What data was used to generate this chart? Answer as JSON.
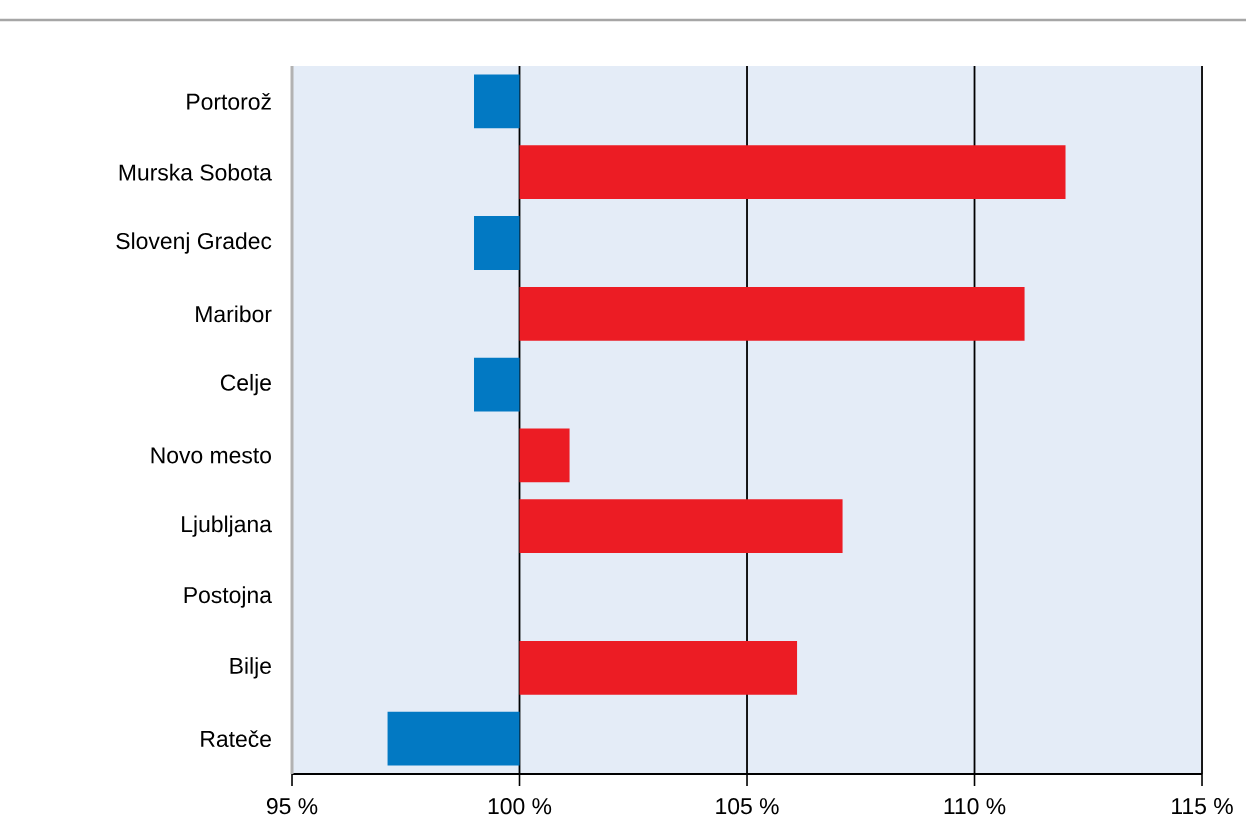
{
  "chart_data": {
    "type": "bar",
    "orientation": "horizontal",
    "categories": [
      "Portorož",
      "Murska Sobota",
      "Slovenj Gradec",
      "Maribor",
      "Celje",
      "Novo mesto",
      "Ljubljana",
      "Postojna",
      "Bilje",
      "Rateče"
    ],
    "base": [
      100,
      100,
      100,
      100,
      100,
      100,
      100,
      null,
      100,
      100
    ],
    "values": [
      -1.0,
      12.0,
      -1.0,
      11.1,
      -1.0,
      1.1,
      7.1,
      null,
      6.1,
      -2.9
    ],
    "colors": [
      "#0279c3",
      "#ec1c24",
      "#0279c3",
      "#ec1c24",
      "#0279c3",
      "#ec1c24",
      "#ec1c24",
      "#ec1c24",
      "#ec1c24",
      "#0279c3"
    ],
    "xlim": [
      95,
      115
    ],
    "xticks": [
      {
        "value": 95,
        "label": "95 %"
      },
      {
        "value": 100,
        "label": "100 %"
      },
      {
        "value": 105,
        "label": "105 %"
      },
      {
        "value": 110,
        "label": "110 %"
      },
      {
        "value": 115,
        "label": "115 %"
      }
    ],
    "grid": "x"
  }
}
